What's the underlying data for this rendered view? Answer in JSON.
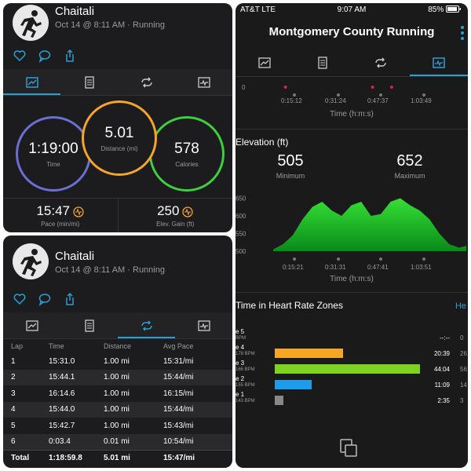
{
  "activity": {
    "user_name": "Chaitali",
    "meta": "Oct 14 @ 8:11 AM · Running"
  },
  "summary": {
    "time": {
      "value": "1:19:00",
      "label": "Time"
    },
    "distance": {
      "value": "5.01",
      "label": "Distance (mi)"
    },
    "calories": {
      "value": "578",
      "label": "Calories"
    },
    "pace": {
      "value": "15:47",
      "label": "Pace (min/mi)"
    },
    "elev_gain": {
      "value": "250",
      "label": "Elev. Gain (ft)"
    }
  },
  "laps": {
    "headers": [
      "Lap",
      "Time",
      "Distance",
      "Avg Pace"
    ],
    "rows": [
      [
        "1",
        "15:31.0",
        "1.00 mi",
        "15:31/mi"
      ],
      [
        "2",
        "15:44.1",
        "1.00 mi",
        "15:44/mi"
      ],
      [
        "3",
        "16:14.6",
        "1.00 mi",
        "16:15/mi"
      ],
      [
        "4",
        "15:44.0",
        "1.00 mi",
        "15:44/mi"
      ],
      [
        "5",
        "15:42.7",
        "1.00 mi",
        "15:43/mi"
      ],
      [
        "6",
        "0:03.4",
        "0.01 mi",
        "10:54/mi"
      ]
    ],
    "total": [
      "Total",
      "1:18:59.8",
      "5.01 mi",
      "15:47/mi"
    ]
  },
  "status_bar": {
    "carrier": "AT&T  LTE",
    "time": "9:07 AM",
    "battery": "85%"
  },
  "app_title": "Montgomery County Running",
  "top_chart": {
    "y_tick": "0",
    "x_ticks": [
      "0:15:12",
      "0:31:24",
      "0:47:37",
      "1:03:49"
    ],
    "x_label": "Time (h:m:s)",
    "markers_minutes": [
      12,
      44,
      51
    ]
  },
  "elevation": {
    "title": "Elevation (ft)",
    "minimum": {
      "value": "505",
      "label": "Minimum"
    },
    "maximum": {
      "value": "652",
      "label": "Maximum"
    },
    "y_ticks": [
      "650",
      "600",
      "550",
      "500"
    ],
    "x_ticks": [
      "0:15:21",
      "0:31:31",
      "0:47:41",
      "1:03:51"
    ],
    "x_label": "Time (h:m:s)"
  },
  "hr_zones": {
    "title": "Time in Heart Rate Zones",
    "link": "He",
    "zones": [
      {
        "name": "e 5",
        "bpm": "BPM",
        "time": "--:--",
        "pct": "0",
        "color": "#888888",
        "fraction": 0
      },
      {
        "name": "e 4",
        "bpm": "178 BPM",
        "time": "20:39",
        "pct": "26",
        "color": "#f5a623",
        "fraction": 0.469
      },
      {
        "name": "e 3",
        "bpm": "166 BPM",
        "time": "44:04",
        "pct": "56",
        "color": "#7ed321",
        "fraction": 1.0
      },
      {
        "name": "e 2",
        "bpm": "155 BPM",
        "time": "11:09",
        "pct": "14",
        "color": "#1e9be9",
        "fraction": 0.253
      },
      {
        "name": "e 1",
        "bpm": "143 BPM",
        "time": "2:35",
        "pct": "3",
        "color": "#888888",
        "fraction": 0.059
      }
    ]
  },
  "chart_data": {
    "type": "area",
    "title": "Elevation (ft)",
    "xlabel": "Time (h:m:s)",
    "ylabel": "",
    "ylim": [
      500,
      660
    ],
    "x_minutes": [
      0,
      4,
      8,
      12,
      16,
      20,
      24,
      28,
      32,
      36,
      40,
      44,
      48,
      52,
      56,
      60,
      64,
      68,
      72,
      76,
      79
    ],
    "values": [
      505,
      520,
      545,
      590,
      625,
      640,
      615,
      600,
      630,
      640,
      600,
      605,
      640,
      650,
      630,
      615,
      590,
      550,
      520,
      510,
      515
    ]
  }
}
